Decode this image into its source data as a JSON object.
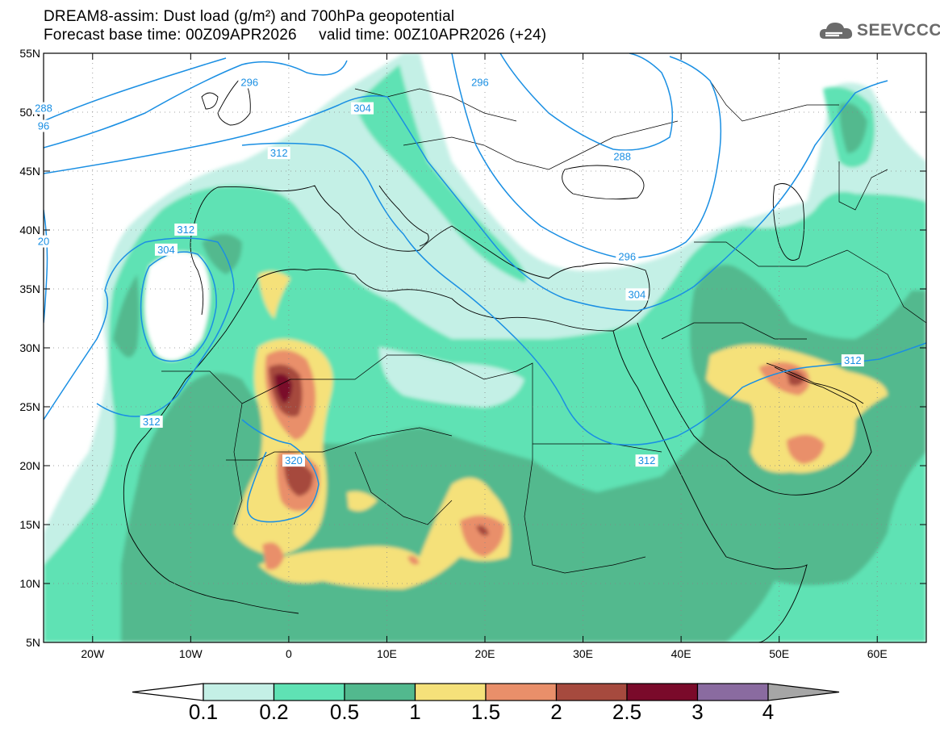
{
  "header": {
    "title_line1": "DREAM8-assim: Dust load (g/m²) and 700hPa geopotential",
    "title_line2": "Forecast base time: 00Z09APR2026     valid time: 00Z10APR2026 (+24)",
    "logo_text": "SEEVCCC"
  },
  "map": {
    "projection": "lat-lon",
    "lon_range": [
      -25,
      65
    ],
    "lat_range": [
      5,
      55
    ],
    "lat_ticks": [
      {
        "value": 55,
        "label": "55N"
      },
      {
        "value": 50,
        "label": "50N"
      },
      {
        "value": 45,
        "label": "45N"
      },
      {
        "value": 40,
        "label": "40N"
      },
      {
        "value": 35,
        "label": "35N"
      },
      {
        "value": 30,
        "label": "30N"
      },
      {
        "value": 25,
        "label": "25N"
      },
      {
        "value": 20,
        "label": "20N"
      },
      {
        "value": 15,
        "label": "15N"
      },
      {
        "value": 10,
        "label": "10N"
      },
      {
        "value": 5,
        "label": "5N"
      }
    ],
    "lon_ticks": [
      {
        "value": -20,
        "label": "20W"
      },
      {
        "value": -10,
        "label": "10W"
      },
      {
        "value": 0,
        "label": "0"
      },
      {
        "value": 10,
        "label": "10E"
      },
      {
        "value": 20,
        "label": "20E"
      },
      {
        "value": 30,
        "label": "30E"
      },
      {
        "value": 40,
        "label": "40E"
      },
      {
        "value": 50,
        "label": "50E"
      },
      {
        "value": 60,
        "label": "60E"
      }
    ],
    "contour_labels": [
      {
        "text": "296",
        "lon": -4,
        "lat": 52.5
      },
      {
        "text": "296",
        "lon": 19.5,
        "lat": 52.5
      },
      {
        "text": "304",
        "lon": 7.5,
        "lat": 50.3
      },
      {
        "text": "288",
        "lon": -25,
        "lat": 50.3
      },
      {
        "text": "96",
        "lon": -25,
        "lat": 48.8
      },
      {
        "text": "312",
        "lon": -1,
        "lat": 46.5
      },
      {
        "text": "288",
        "lon": 34,
        "lat": 46.2
      },
      {
        "text": "312",
        "lon": -10.5,
        "lat": 40.0
      },
      {
        "text": "20",
        "lon": -25,
        "lat": 39.0
      },
      {
        "text": "304",
        "lon": -12.5,
        "lat": 38.3
      },
      {
        "text": "296",
        "lon": 34.5,
        "lat": 37.7
      },
      {
        "text": "304",
        "lon": 35.5,
        "lat": 34.5
      },
      {
        "text": "312",
        "lon": 57.5,
        "lat": 28.9
      },
      {
        "text": "312",
        "lon": -14,
        "lat": 23.7
      },
      {
        "text": "320",
        "lon": 0.5,
        "lat": 20.4
      },
      {
        "text": "312",
        "lon": 36.5,
        "lat": 20.4
      }
    ]
  },
  "legend": {
    "levels": [
      "0.1",
      "0.2",
      "0.5",
      "1",
      "1.5",
      "2",
      "2.5",
      "3",
      "4"
    ],
    "colors": [
      "#ffffff",
      "#c4f0e6",
      "#5fe2b4",
      "#52b98e",
      "#f5e17a",
      "#e98f6a",
      "#a64a3e",
      "#7a0a2a",
      "#8a6ba0",
      "#a6a6a6"
    ]
  },
  "colors": {
    "contour": "#1a8fe3",
    "coast": "#000000"
  }
}
